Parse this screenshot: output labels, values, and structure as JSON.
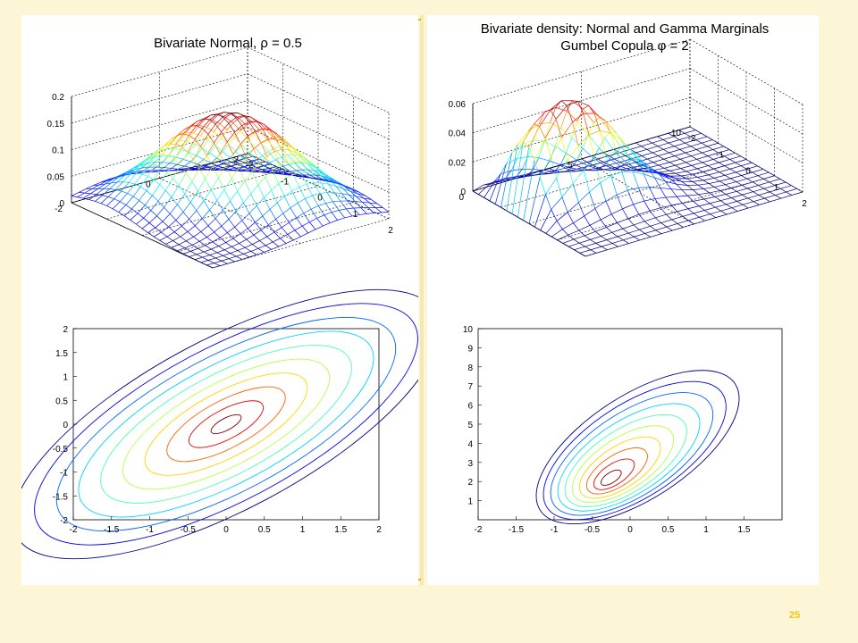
{
  "slide": {
    "page_number": "25"
  },
  "chart_data": [
    {
      "type": "surface",
      "title": "Bivariate Normal, ρ = 0.5",
      "x_ticks": [
        "-2",
        "-1",
        "0",
        "1",
        "2"
      ],
      "y_ticks": [
        "-2",
        "0",
        "2"
      ],
      "z_ticks": [
        "0",
        "0.05",
        "0.1",
        "0.15",
        "0.2"
      ],
      "xlim": [
        -2,
        2
      ],
      "ylim": [
        -2,
        2
      ],
      "zlim": [
        0,
        0.2
      ],
      "rho": 0.5,
      "peak": 0.18,
      "grid": true
    },
    {
      "type": "surface",
      "title": "Bivariate density: Normal and Gamma Marginals",
      "subtitle": "Gumbel Copula φ = 2",
      "x_ticks": [
        "-2",
        "-1",
        "0",
        "1",
        "2"
      ],
      "y_ticks": [
        "0",
        "5",
        "10"
      ],
      "z_ticks": [
        "0",
        "0.02",
        "0.04",
        "0.06"
      ],
      "xlim": [
        -2,
        2
      ],
      "ylim": [
        0,
        10
      ],
      "zlim": [
        0,
        0.06
      ],
      "peak": 0.072,
      "grid": true
    },
    {
      "type": "contour",
      "x_ticks": [
        "-2",
        "-1.5",
        "-1",
        "-0.5",
        "0",
        "0.5",
        "1",
        "1.5",
        "2"
      ],
      "y_ticks": [
        "-2",
        "-1.5",
        "-1",
        "-0.5",
        "0",
        "0.5",
        "1",
        "1.5",
        "2"
      ],
      "xlim": [
        -2,
        2
      ],
      "ylim": [
        -2,
        2
      ],
      "rho": 0.5,
      "levels": 10
    },
    {
      "type": "contour",
      "x_ticks": [
        "-2",
        "-1.5",
        "-1",
        "-0.5",
        "0",
        "0.5",
        "1",
        "1.5"
      ],
      "y_ticks": [
        "1",
        "2",
        "3",
        "4",
        "5",
        "6",
        "7",
        "8",
        "9",
        "10"
      ],
      "xlim": [
        -2,
        2
      ],
      "ylim": [
        0,
        10
      ],
      "levels": 10
    }
  ]
}
